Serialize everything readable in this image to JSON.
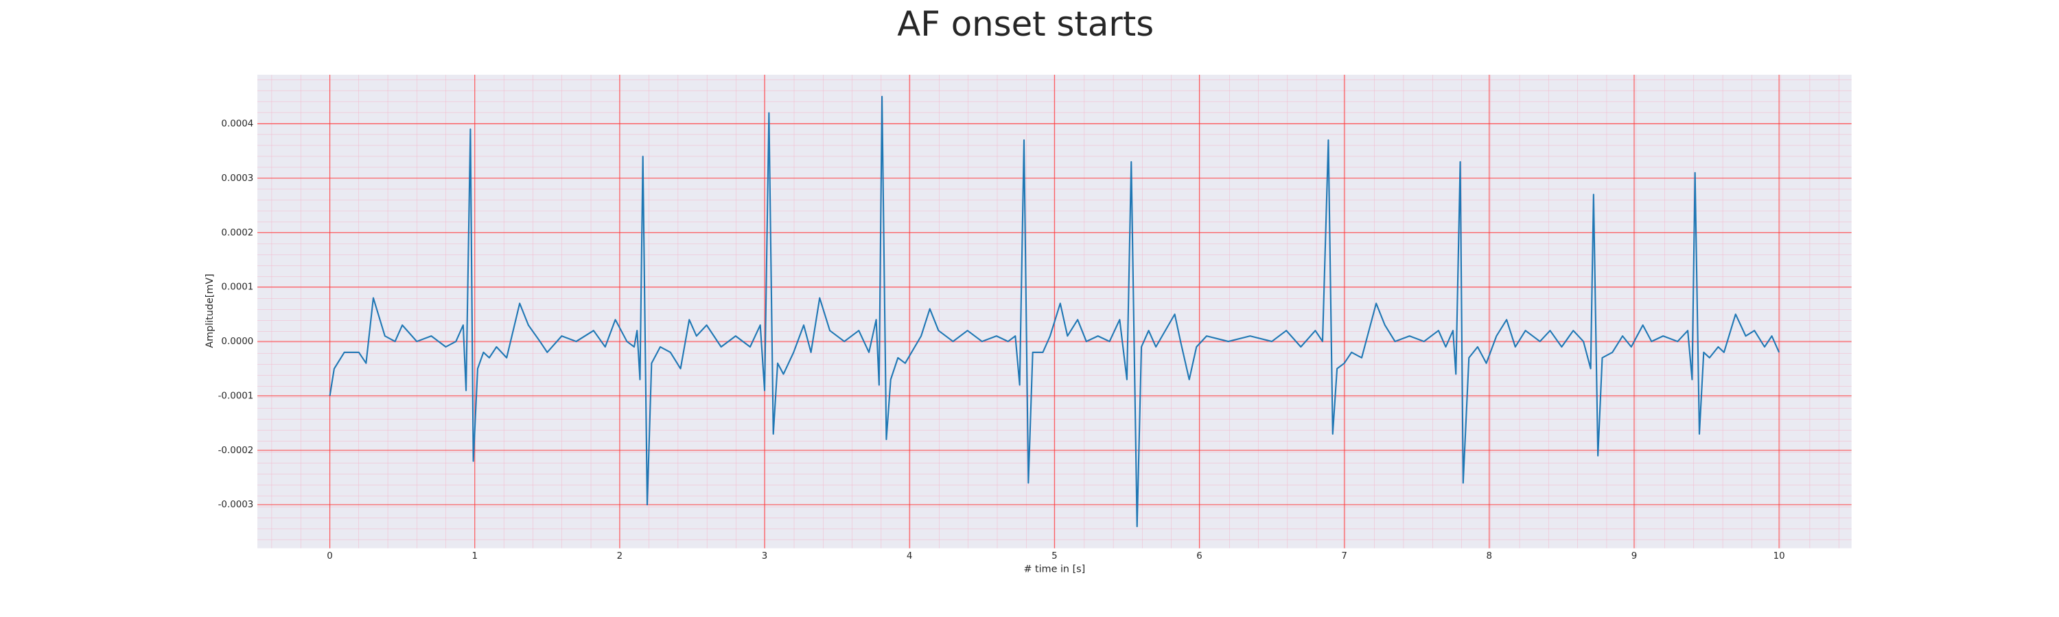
{
  "chart_data": {
    "type": "line",
    "title": "AF onset starts",
    "xlabel": "# time in [s]",
    "ylabel": "Amplitude[mV]",
    "color": "#1f77b4",
    "grid": true,
    "grid_color": "#ff3b3b",
    "xlim": [
      -0.5,
      10.5
    ],
    "ylim": [
      -0.00038,
      0.00049
    ],
    "xticks": [
      0,
      1,
      2,
      3,
      4,
      5,
      6,
      7,
      8,
      9,
      10
    ],
    "yticks": [
      -0.0003,
      -0.0002,
      -0.0001,
      {
        "value": 0,
        "label": "0.0000"
      },
      0.0001,
      0.0002,
      0.0003,
      0.0004
    ],
    "x": [
      0,
      0.03,
      0.1,
      0.2,
      0.25,
      0.3,
      0.38,
      0.45,
      0.5,
      0.6,
      0.7,
      0.8,
      0.87,
      0.92,
      0.94,
      0.97,
      0.99,
      1.02,
      1.06,
      1.1,
      1.15,
      1.22,
      1.31,
      1.37,
      1.45,
      1.5,
      1.6,
      1.7,
      1.82,
      1.9,
      1.97,
      2.05,
      2.1,
      2.12,
      2.14,
      2.16,
      2.19,
      2.22,
      2.28,
      2.35,
      2.42,
      2.48,
      2.53,
      2.6,
      2.7,
      2.8,
      2.9,
      2.97,
      3.0,
      3.03,
      3.06,
      3.09,
      3.13,
      3.2,
      3.27,
      3.32,
      3.38,
      3.45,
      3.55,
      3.65,
      3.72,
      3.77,
      3.79,
      3.81,
      3.84,
      3.87,
      3.92,
      3.97,
      4.08,
      4.14,
      4.2,
      4.3,
      4.4,
      4.5,
      4.6,
      4.68,
      4.73,
      4.76,
      4.79,
      4.82,
      4.85,
      4.92,
      4.97,
      5.04,
      5.09,
      5.16,
      5.22,
      5.3,
      5.38,
      5.45,
      5.5,
      5.53,
      5.57,
      5.6,
      5.65,
      5.7,
      5.83,
      5.87,
      5.93,
      5.98,
      6.05,
      6.2,
      6.35,
      6.5,
      6.6,
      6.7,
      6.8,
      6.85,
      6.89,
      6.92,
      6.95,
      7.0,
      7.05,
      7.12,
      7.22,
      7.28,
      7.35,
      7.45,
      7.55,
      7.65,
      7.7,
      7.75,
      7.77,
      7.8,
      7.82,
      7.86,
      7.92,
      7.98,
      8.05,
      8.12,
      8.18,
      8.25,
      8.35,
      8.42,
      8.5,
      8.58,
      8.65,
      8.7,
      8.72,
      8.75,
      8.78,
      8.85,
      8.92,
      8.98,
      9.06,
      9.12,
      9.2,
      9.3,
      9.37,
      9.4,
      9.42,
      9.45,
      9.48,
      9.52,
      9.58,
      9.62,
      9.7,
      9.77,
      9.83,
      9.9,
      9.95,
      10.0
    ],
    "values": [
      -0.0001,
      -5e-05,
      -2e-05,
      -2e-05,
      -4e-05,
      8e-05,
      1e-05,
      0,
      3e-05,
      0,
      1e-05,
      -1e-05,
      0,
      3e-05,
      -9e-05,
      0.00039,
      -0.00022,
      -5e-05,
      -2e-05,
      -3e-05,
      -1e-05,
      -3e-05,
      7e-05,
      3e-05,
      0,
      -2e-05,
      1e-05,
      0,
      2e-05,
      -1e-05,
      4e-05,
      0,
      -1e-05,
      2e-05,
      -7e-05,
      0.00034,
      -0.0003,
      -4e-05,
      -1e-05,
      -2e-05,
      -5e-05,
      4e-05,
      1e-05,
      3e-05,
      -1e-05,
      1e-05,
      -1e-05,
      3e-05,
      -9e-05,
      0.00042,
      -0.00017,
      -4e-05,
      -6e-05,
      -2e-05,
      3e-05,
      -2e-05,
      8e-05,
      2e-05,
      0,
      2e-05,
      -2e-05,
      4e-05,
      -8e-05,
      0.00045,
      -0.00018,
      -7e-05,
      -3e-05,
      -4e-05,
      1e-05,
      6e-05,
      2e-05,
      0,
      2e-05,
      0,
      1e-05,
      0,
      1e-05,
      -8e-05,
      0.00037,
      -0.00026,
      -2e-05,
      -2e-05,
      1e-05,
      7e-05,
      1e-05,
      4e-05,
      0,
      1e-05,
      0,
      4e-05,
      -7e-05,
      0.00033,
      -0.00034,
      -1e-05,
      2e-05,
      -1e-05,
      5e-05,
      0,
      -7e-05,
      -1e-05,
      1e-05,
      0,
      1e-05,
      0,
      2e-05,
      -1e-05,
      2e-05,
      0,
      0.00037,
      -0.00017,
      -5e-05,
      -4e-05,
      -2e-05,
      -3e-05,
      7e-05,
      3e-05,
      0,
      1e-05,
      0,
      2e-05,
      -1e-05,
      2e-05,
      -6e-05,
      0.00033,
      -0.00026,
      -3e-05,
      -1e-05,
      -4e-05,
      1e-05,
      4e-05,
      -1e-05,
      2e-05,
      0,
      2e-05,
      -1e-05,
      2e-05,
      0,
      -5e-05,
      0.00027,
      -0.00021,
      -3e-05,
      -2e-05,
      1e-05,
      -1e-05,
      3e-05,
      0,
      1e-05,
      0,
      2e-05,
      -7e-05,
      0.00031,
      -0.00017,
      -2e-05,
      -3e-05,
      -1e-05,
      -2e-05,
      5e-05,
      1e-05,
      2e-05,
      -1e-05,
      1e-05,
      -2e-05
    ]
  }
}
